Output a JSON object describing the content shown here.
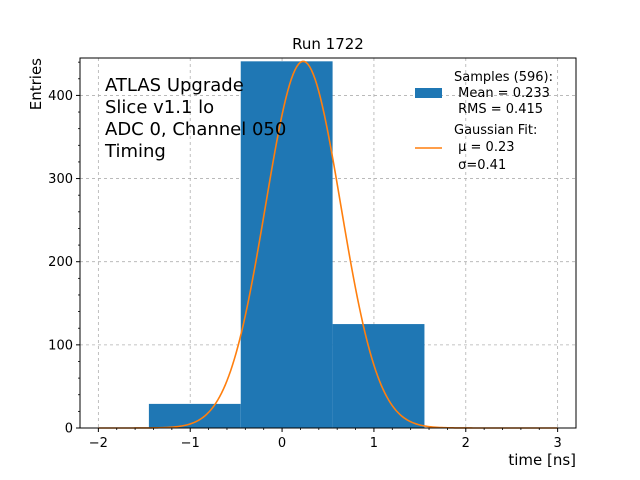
{
  "chart_data": {
    "type": "bar",
    "title": "Run 1722",
    "xlabel": "time [ns]",
    "ylabel": "Entries",
    "xlim": [
      -2.2,
      3.2
    ],
    "ylim": [
      0,
      445
    ],
    "xticks": [
      -2,
      -1,
      0,
      1,
      2,
      3
    ],
    "xtick_labels": [
      "−2",
      "−1",
      "0",
      "1",
      "2",
      "3"
    ],
    "yticks": [
      0,
      100,
      200,
      300,
      400
    ],
    "ytick_labels": [
      "0",
      "100",
      "200",
      "300",
      "400"
    ],
    "grid": true,
    "legend_position": "top-right",
    "bar_color": "#1f77b4",
    "fit_color": "#ff7f0e",
    "bins": [
      {
        "x0": -1.45,
        "x1": -0.45,
        "value": 29
      },
      {
        "x0": -0.45,
        "x1": 0.55,
        "value": 441
      },
      {
        "x0": 0.55,
        "x1": 1.55,
        "value": 125
      }
    ],
    "gaussian_fit": {
      "mu": 0.23,
      "sigma": 0.41,
      "amplitude": 441,
      "x_range": [
        -2,
        3
      ]
    },
    "annotation_lines": [
      "ATLAS Upgrade",
      "Slice v1.1 lo",
      "ADC 0, Channel 050",
      "Timing"
    ],
    "legend": {
      "samples_lines": [
        "Samples (596):",
        " Mean = 0.233",
        " RMS = 0.415"
      ],
      "fit_lines": [
        "Gaussian Fit:",
        " μ = 0.23",
        " σ=0.41"
      ]
    }
  }
}
